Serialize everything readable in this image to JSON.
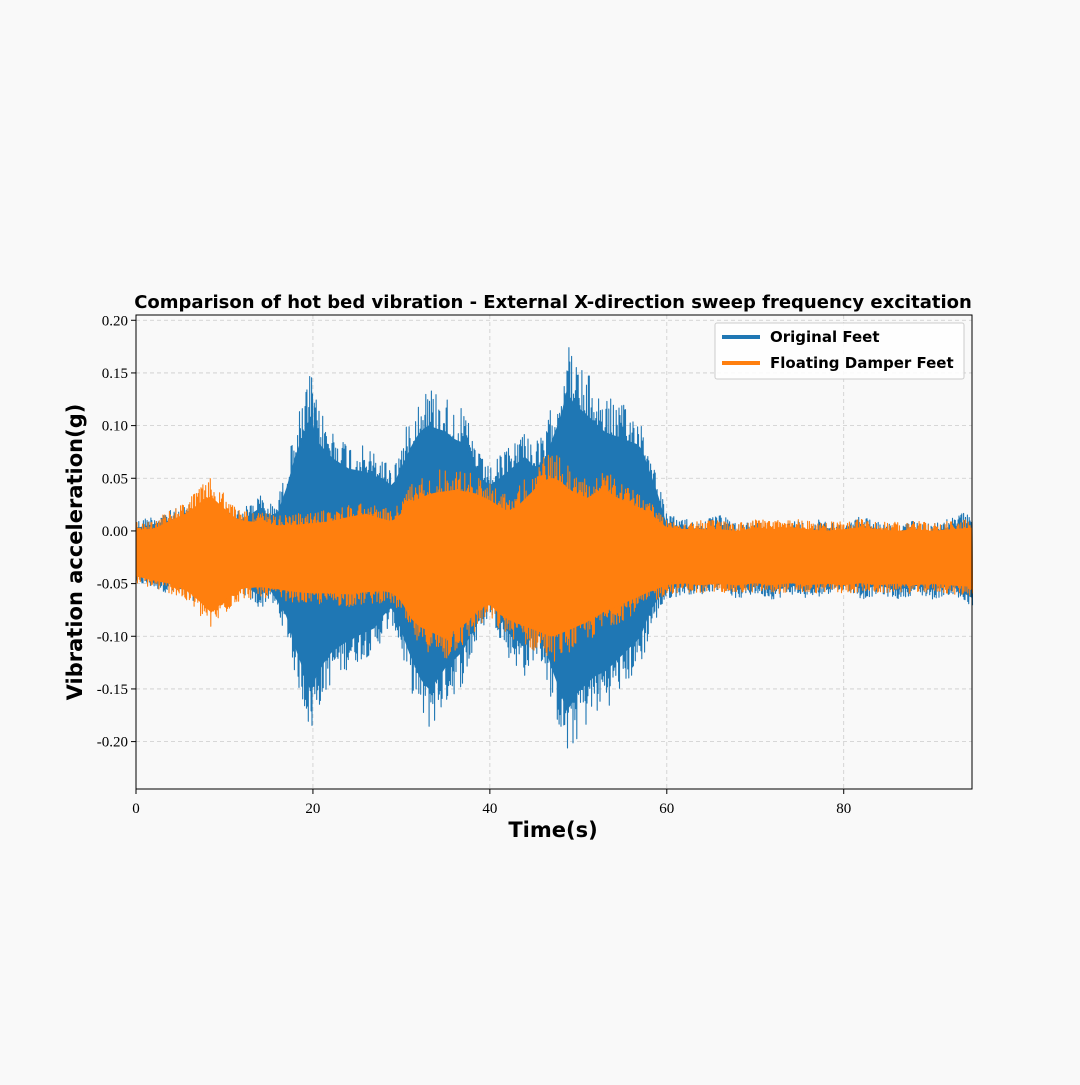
{
  "chart_data": {
    "type": "line",
    "title": "Comparison of hot bed vibration - External X-direction sweep frequency excitation",
    "xlabel": "Time(s)",
    "ylabel": "Vibration acceleration(g)",
    "xlim": [
      0,
      94.5
    ],
    "ylim": [
      -0.245,
      0.205
    ],
    "xticks": [
      0,
      20,
      40,
      60,
      80
    ],
    "xtick_labels": [
      "0",
      "20",
      "40",
      "60",
      "80"
    ],
    "yticks": [
      0.2,
      0.15,
      0.1,
      0.05,
      0.0,
      -0.05,
      -0.1,
      -0.15,
      -0.2
    ],
    "ytick_labels": [
      "0.20",
      "0.15",
      "0.10",
      "0.05",
      "0.00",
      "-0.05",
      "-0.10",
      "-0.15",
      "-0.20"
    ],
    "grid": true,
    "legend_position": "top-right",
    "note": "Values are upper/lower envelope of the vibration signal sampled over time",
    "series": [
      {
        "name": "Original Feet",
        "color": "#1f77b4",
        "x": [
          0,
          2,
          4,
          6,
          8,
          10,
          12,
          14,
          15,
          16,
          17,
          18,
          19,
          19.7,
          20.5,
          22,
          24,
          26,
          27,
          28,
          29,
          30,
          31,
          32,
          33,
          34,
          35,
          36,
          37,
          38,
          39,
          40,
          41,
          42,
          43,
          44,
          45,
          46,
          47,
          48,
          48.7,
          49.5,
          50,
          51,
          52,
          53,
          54,
          55,
          56,
          57,
          58,
          59,
          60,
          62,
          64,
          66,
          68,
          70,
          72,
          74,
          76,
          78,
          80,
          82,
          84,
          86,
          88,
          90,
          92,
          94.5
        ],
        "upper": [
          0.01,
          0.015,
          0.02,
          0.025,
          0.03,
          0.025,
          0.02,
          0.035,
          0.025,
          0.03,
          0.06,
          0.1,
          0.13,
          0.152,
          0.12,
          0.1,
          0.085,
          0.08,
          0.075,
          0.07,
          0.06,
          0.085,
          0.11,
          0.13,
          0.14,
          0.135,
          0.13,
          0.12,
          0.115,
          0.095,
          0.07,
          0.06,
          0.07,
          0.08,
          0.09,
          0.1,
          0.085,
          0.09,
          0.12,
          0.15,
          0.182,
          0.165,
          0.16,
          0.15,
          0.14,
          0.13,
          0.125,
          0.12,
          0.115,
          0.11,
          0.08,
          0.05,
          0.015,
          0.012,
          0.01,
          0.015,
          0.008,
          0.01,
          0.005,
          0.01,
          0.008,
          0.012,
          0.005,
          0.015,
          0.01,
          0.005,
          0.01,
          0.008,
          0.012,
          0.02
        ],
        "lower": [
          -0.05,
          -0.055,
          -0.06,
          -0.065,
          -0.07,
          -0.065,
          -0.06,
          -0.075,
          -0.065,
          -0.08,
          -0.1,
          -0.14,
          -0.17,
          -0.198,
          -0.17,
          -0.145,
          -0.13,
          -0.12,
          -0.115,
          -0.1,
          -0.09,
          -0.12,
          -0.15,
          -0.175,
          -0.19,
          -0.18,
          -0.165,
          -0.155,
          -0.145,
          -0.12,
          -0.095,
          -0.08,
          -0.1,
          -0.12,
          -0.13,
          -0.14,
          -0.12,
          -0.13,
          -0.165,
          -0.195,
          -0.22,
          -0.205,
          -0.195,
          -0.185,
          -0.175,
          -0.17,
          -0.16,
          -0.15,
          -0.14,
          -0.13,
          -0.1,
          -0.08,
          -0.065,
          -0.06,
          -0.06,
          -0.055,
          -0.065,
          -0.06,
          -0.065,
          -0.06,
          -0.065,
          -0.06,
          -0.055,
          -0.065,
          -0.06,
          -0.065,
          -0.06,
          -0.065,
          -0.06,
          -0.075
        ]
      },
      {
        "name": "Floating Damper Feet",
        "color": "#ff7f0e",
        "x": [
          0,
          2,
          4,
          6,
          7,
          8,
          8.5,
          9,
          10,
          11,
          12,
          14,
          16,
          18,
          20,
          22,
          24,
          26,
          28,
          29,
          30,
          31,
          32,
          33,
          34,
          35,
          36,
          37,
          38,
          39,
          40,
          41,
          42,
          43,
          44,
          45,
          46,
          47,
          48,
          49,
          50,
          51,
          52,
          53,
          54,
          55,
          56,
          57,
          58,
          59,
          60,
          62,
          64,
          66,
          68,
          70,
          72,
          74,
          76,
          78,
          80,
          82,
          84,
          86,
          88,
          90,
          92,
          94.5
        ],
        "upper": [
          0.008,
          0.01,
          0.02,
          0.03,
          0.04,
          0.048,
          0.05,
          0.045,
          0.035,
          0.025,
          0.02,
          0.018,
          0.015,
          0.016,
          0.018,
          0.02,
          0.025,
          0.028,
          0.022,
          0.02,
          0.03,
          0.045,
          0.05,
          0.055,
          0.058,
          0.06,
          0.06,
          0.058,
          0.055,
          0.05,
          0.045,
          0.04,
          0.035,
          0.04,
          0.05,
          0.06,
          0.07,
          0.075,
          0.07,
          0.06,
          0.055,
          0.05,
          0.055,
          0.06,
          0.05,
          0.045,
          0.04,
          0.035,
          0.03,
          0.02,
          0.012,
          0.01,
          0.01,
          0.01,
          0.008,
          0.012,
          0.01,
          0.012,
          0.01,
          0.008,
          0.01,
          0.012,
          0.01,
          0.008,
          0.01,
          0.008,
          0.01,
          0.012
        ],
        "lower": [
          -0.05,
          -0.055,
          -0.06,
          -0.07,
          -0.08,
          -0.09,
          -0.095,
          -0.09,
          -0.08,
          -0.07,
          -0.065,
          -0.063,
          -0.065,
          -0.068,
          -0.07,
          -0.07,
          -0.072,
          -0.07,
          -0.068,
          -0.07,
          -0.08,
          -0.1,
          -0.11,
          -0.115,
          -0.12,
          -0.125,
          -0.115,
          -0.11,
          -0.1,
          -0.09,
          -0.085,
          -0.095,
          -0.1,
          -0.105,
          -0.11,
          -0.115,
          -0.12,
          -0.125,
          -0.12,
          -0.115,
          -0.11,
          -0.105,
          -0.1,
          -0.095,
          -0.09,
          -0.085,
          -0.08,
          -0.075,
          -0.07,
          -0.065,
          -0.06,
          -0.058,
          -0.06,
          -0.058,
          -0.06,
          -0.058,
          -0.06,
          -0.058,
          -0.06,
          -0.058,
          -0.06,
          -0.058,
          -0.06,
          -0.058,
          -0.06,
          -0.058,
          -0.06,
          -0.062
        ]
      }
    ]
  }
}
